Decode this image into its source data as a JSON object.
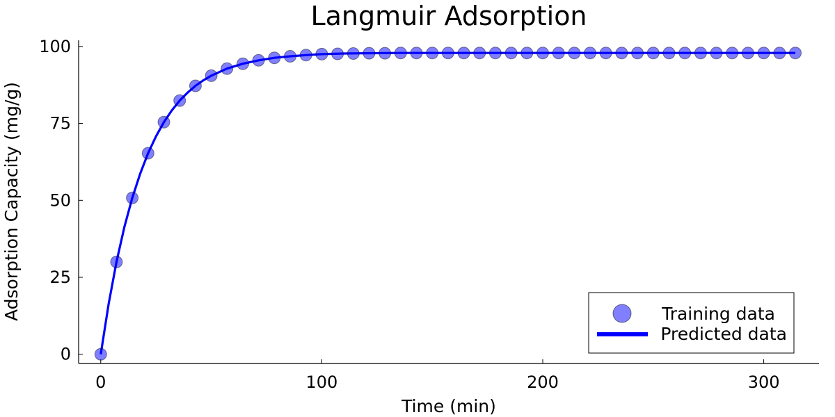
{
  "chart_data": {
    "type": "line",
    "title": "Langmuir Adsorption",
    "xlabel": "Time (min)",
    "ylabel": "Adsorption Capacity (mg/g)",
    "xlim": [
      -10,
      325
    ],
    "ylim": [
      -3,
      102
    ],
    "xticks": [
      0,
      100,
      200,
      300
    ],
    "yticks": [
      0,
      25,
      50,
      75,
      100
    ],
    "grid": false,
    "legend_position": "bottom-right",
    "colors": {
      "scatter": "#0000ff",
      "line": "#0000ff"
    },
    "series": [
      {
        "name": "Training data",
        "kind": "scatter",
        "x": [
          0,
          7.14,
          14.29,
          21.43,
          28.57,
          35.71,
          42.86,
          50,
          57.14,
          64.29,
          71.43,
          78.57,
          85.71,
          92.86,
          100,
          107.14,
          114.29,
          121.43,
          128.57,
          135.71,
          142.86,
          150,
          157.14,
          164.29,
          171.43,
          178.57,
          185.71,
          192.86,
          200,
          207.14,
          214.29,
          221.43,
          228.57,
          235.71,
          242.86,
          250,
          257.14,
          264.29,
          271.43,
          278.57,
          285.71,
          292.86,
          300,
          307.14,
          314.29
        ],
        "y": [
          0,
          30.0,
          50.8,
          65.3,
          75.4,
          82.4,
          87.2,
          90.5,
          92.8,
          94.4,
          95.5,
          96.3,
          96.8,
          97.2,
          97.5,
          97.6,
          97.7,
          97.8,
          97.8,
          97.9,
          97.9,
          97.9,
          97.9,
          97.9,
          97.9,
          97.9,
          97.9,
          97.9,
          97.9,
          97.9,
          97.9,
          97.9,
          97.9,
          97.9,
          97.9,
          97.9,
          97.9,
          97.9,
          97.9,
          97.9,
          97.9,
          97.9,
          97.9,
          97.9,
          97.9
        ]
      },
      {
        "name": "Predicted data",
        "kind": "line",
        "x": [
          0,
          3.57,
          7.14,
          10.71,
          14.29,
          17.86,
          21.43,
          25,
          28.57,
          32.14,
          35.71,
          39.29,
          42.86,
          46.43,
          50,
          57.14,
          64.29,
          71.43,
          78.57,
          85.71,
          92.86,
          100,
          110,
          120,
          135,
          150,
          175,
          200,
          250,
          300,
          314.29
        ],
        "y": [
          0,
          16.3,
          30.0,
          41.4,
          50.8,
          58.7,
          65.3,
          70.8,
          75.4,
          79.2,
          82.4,
          85.0,
          87.2,
          89.0,
          90.5,
          92.8,
          94.4,
          95.5,
          96.3,
          96.8,
          97.2,
          97.5,
          97.7,
          97.8,
          97.9,
          97.9,
          97.9,
          97.9,
          97.9,
          97.9,
          97.9
        ]
      }
    ]
  }
}
